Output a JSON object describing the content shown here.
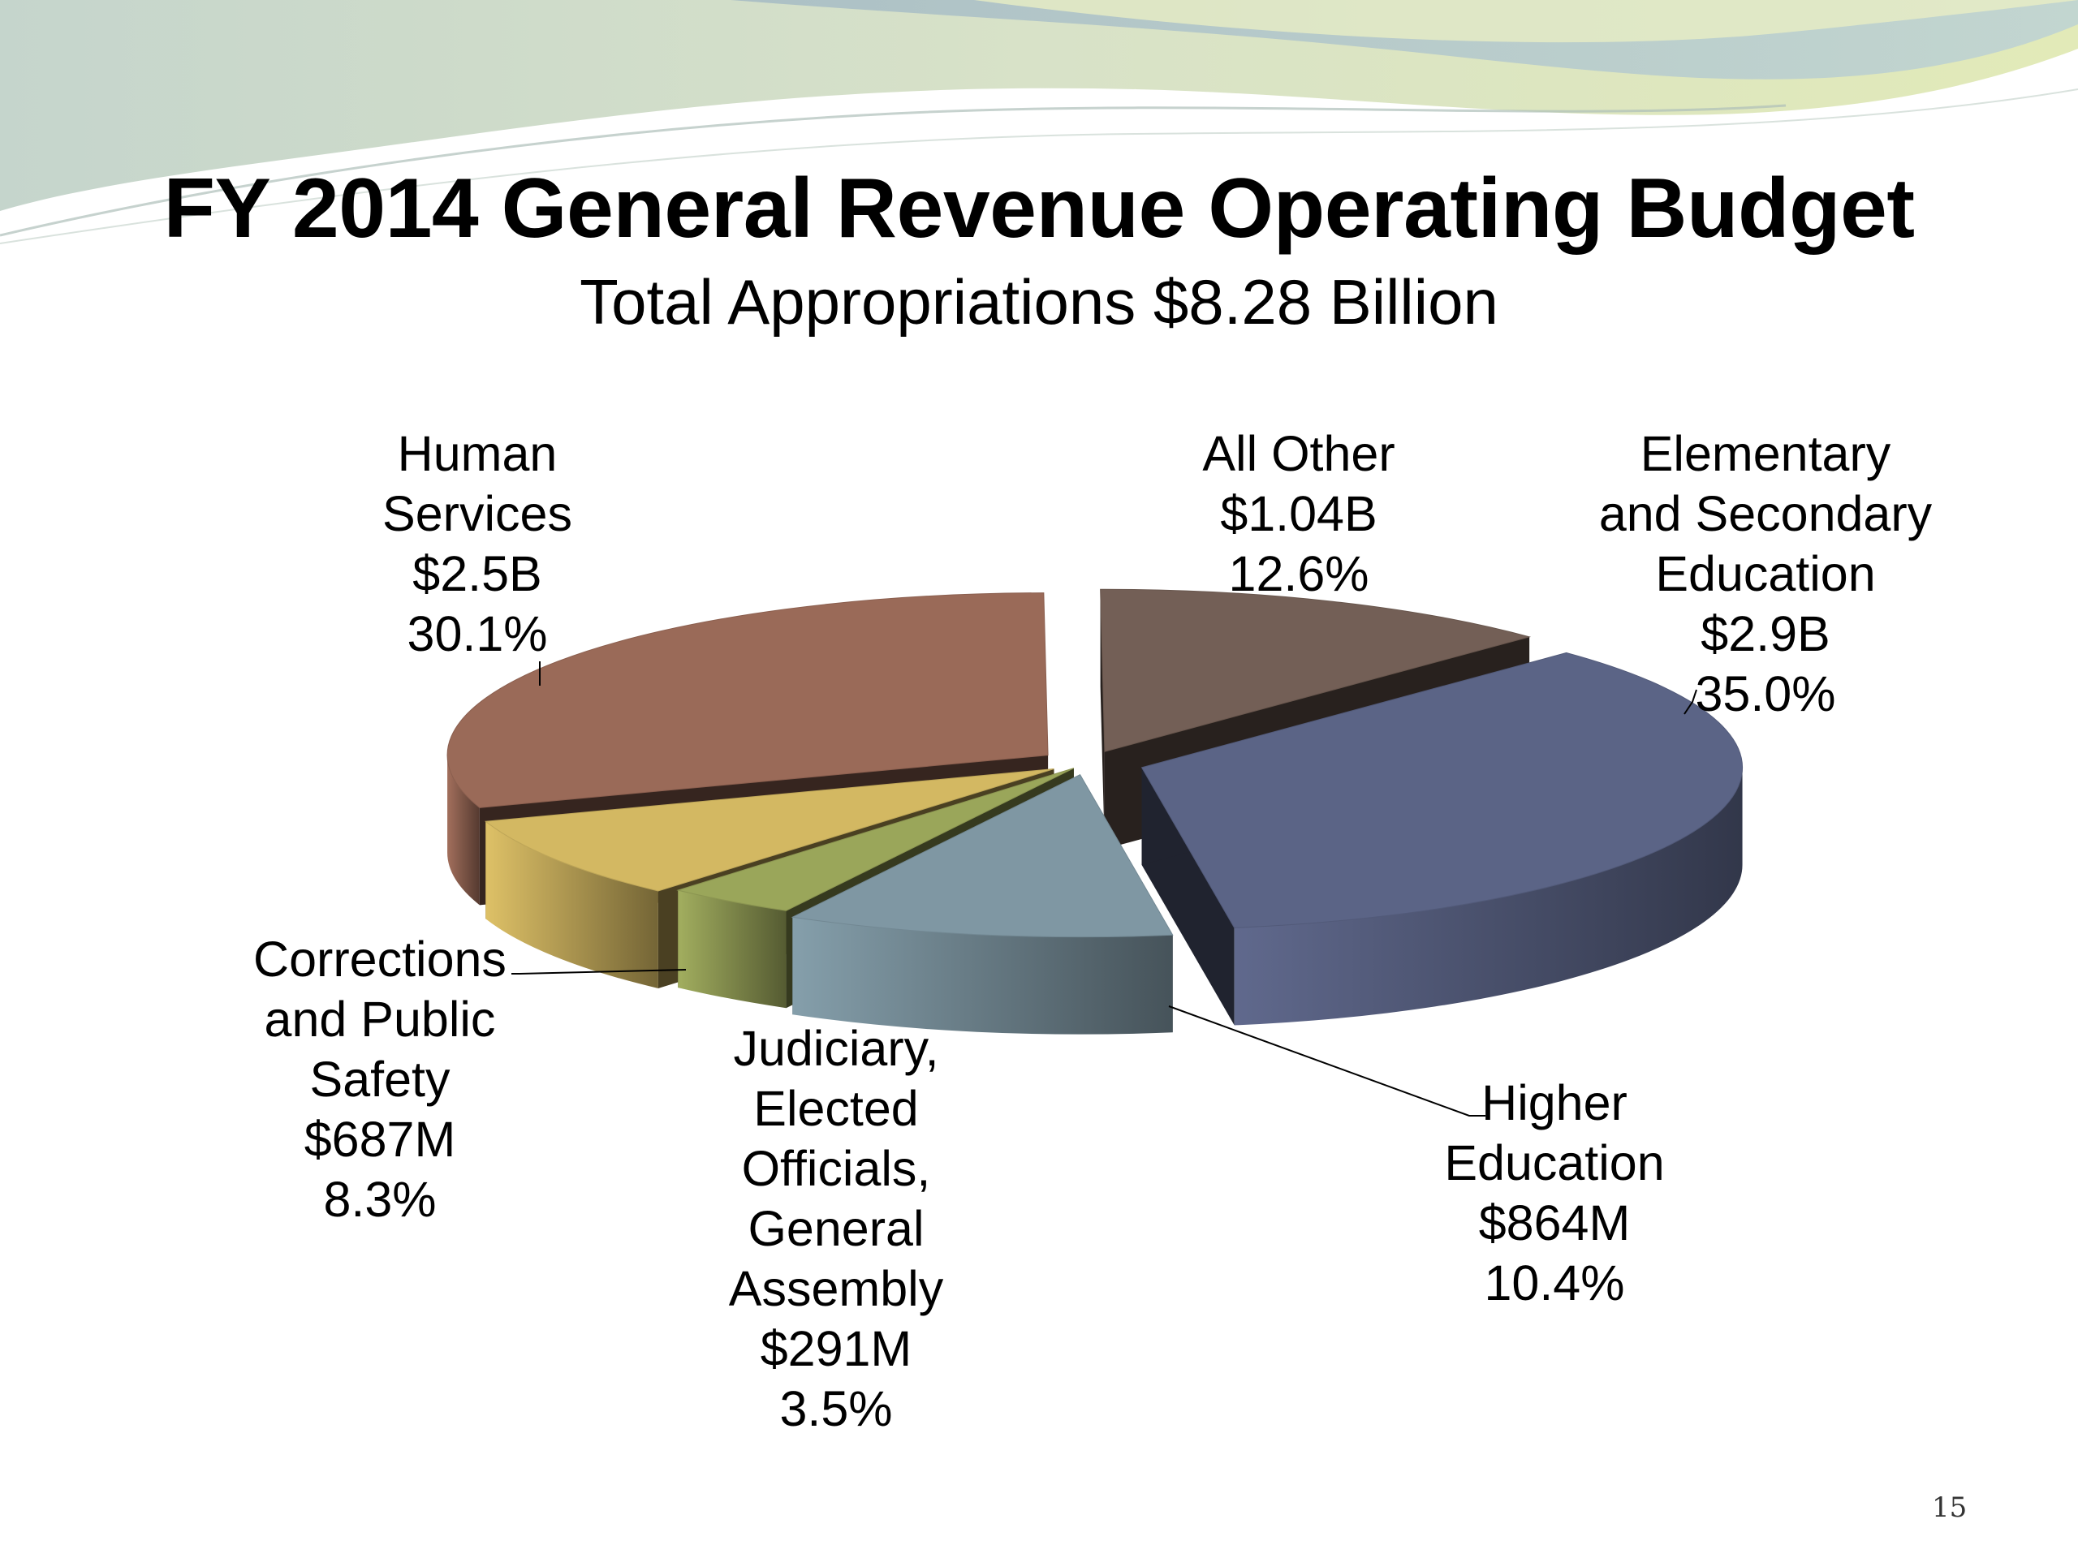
{
  "slide": {
    "title": "FY 2014 General Revenue Operating Budget",
    "subtitle": "Total Appropriations  $8.28 Billion",
    "page_number": "15"
  },
  "chart_data": {
    "type": "pie",
    "title": "FY 2014 General Revenue Operating Budget",
    "subtitle": "Total Appropriations  $8.28 Billion",
    "style": "3d-exploded",
    "slices": [
      {
        "name": "Elementary and Secondary Education",
        "label_lines": [
          "Elementary",
          "and Secondary",
          "Education",
          "$2.9B",
          "35.0%"
        ],
        "amount": "$2.9B",
        "percent": 35.0,
        "color": "#5b6486"
      },
      {
        "name": "Higher Education",
        "label_lines": [
          "Higher",
          "Education",
          "$864M",
          "10.4%"
        ],
        "amount": "$864M",
        "percent": 10.4,
        "color": "#7f97a3"
      },
      {
        "name": "Judiciary, Elected Officials, General Assembly",
        "label_lines": [
          "Judiciary,",
          "Elected",
          "Officials,",
          "General",
          "Assembly",
          "$291M",
          "3.5%"
        ],
        "amount": "$291M",
        "percent": 3.5,
        "color": "#9aa65a"
      },
      {
        "name": "Corrections and Public Safety",
        "label_lines": [
          "Corrections",
          "and Public",
          "Safety",
          "$687M",
          "8.3%"
        ],
        "amount": "$687M",
        "percent": 8.3,
        "color": "#d3b862"
      },
      {
        "name": "Human Services",
        "label_lines": [
          "Human",
          "Services",
          "$2.5B",
          "30.1%"
        ],
        "amount": "$2.5B",
        "percent": 30.1,
        "color": "#9a6a58"
      },
      {
        "name": "All Other",
        "label_lines": [
          "All Other",
          "$1.04B",
          "12.6%"
        ],
        "amount": "$1.04B",
        "percent": 12.6,
        "color": "#735f56"
      }
    ]
  }
}
